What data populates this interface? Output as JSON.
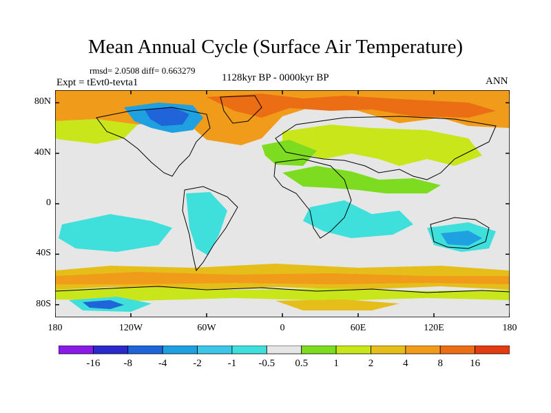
{
  "title": "Mean Annual Cycle (Surface Air Temperature)",
  "stats": "rmsd= 2.0508  diff= 0.663279",
  "experiment": "Expt = tEvt0-tevta1",
  "period": "1128kyr BP - 0000kyr BP",
  "season": "ANN",
  "axes": {
    "lon_ticks": [
      {
        "lon": -180,
        "label": "180"
      },
      {
        "lon": -120,
        "label": "120W"
      },
      {
        "lon": -60,
        "label": "60W"
      },
      {
        "lon": 0,
        "label": "0"
      },
      {
        "lon": 60,
        "label": "60E"
      },
      {
        "lon": 120,
        "label": "120E"
      },
      {
        "lon": 180,
        "label": "180"
      }
    ],
    "lat_ticks": [
      {
        "lat": 80,
        "label": "80N"
      },
      {
        "lat": 40,
        "label": "40N"
      },
      {
        "lat": 0,
        "label": "0"
      },
      {
        "lat": -40,
        "label": "40S"
      },
      {
        "lat": -80,
        "label": "80S"
      }
    ],
    "lon_range": [
      -180,
      180
    ],
    "lat_range": [
      -90,
      90
    ]
  },
  "colorbar": {
    "labels": [
      "-16",
      "-8",
      "-4",
      "-2",
      "-1",
      "-0.5",
      "0.5",
      "1",
      "2",
      "4",
      "8",
      "16"
    ],
    "colors": [
      "#8a1ae6",
      "#2a2acc",
      "#1f64d8",
      "#1fa0e0",
      "#3ec6e8",
      "#3fe0dc",
      "#e6e6e6",
      "#7ddc1f",
      "#c8e61a",
      "#e6be1a",
      "#f09b1a",
      "#ec6e14",
      "#e23c12"
    ]
  }
}
